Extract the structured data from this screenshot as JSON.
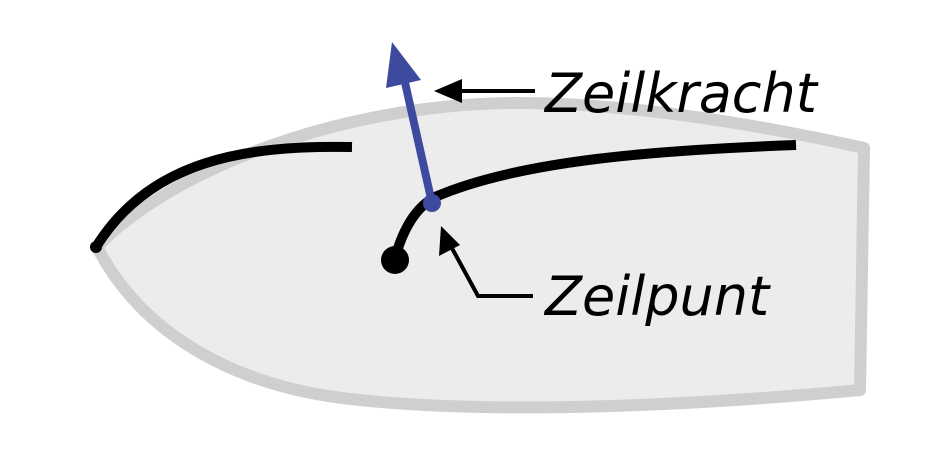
{
  "labels": {
    "sail_force": "Zeilkracht",
    "sail_point": "Zeilpunt"
  },
  "colors": {
    "hull_fill": "#ececec",
    "hull_stroke": "#cfcfcf",
    "sail_line": "#000000",
    "force_arrow": "#3d4a9e",
    "label_text": "#000000",
    "background": "#ffffff"
  }
}
